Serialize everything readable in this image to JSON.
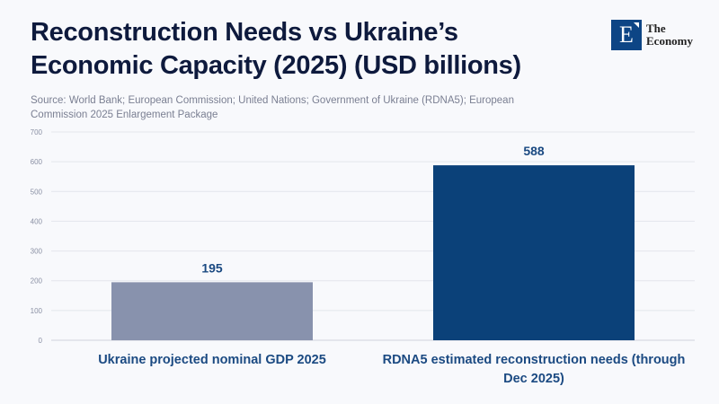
{
  "header": {
    "title": "Reconstruction Needs vs Ukraine’s Economic Capacity (2025) (USD billions)",
    "subtitle": "Source: World Bank; European Commission; United Nations; Government of Ukraine (RDNA5); European Commission 2025 Enlargement Package"
  },
  "logo": {
    "letter": "E",
    "line1": "The",
    "line2": "Economy",
    "color": "#0d4585"
  },
  "chart_data": {
    "type": "bar",
    "title": "Reconstruction Needs vs Ukraine’s Economic Capacity (2025) (USD billions)",
    "categories": [
      "Ukraine projected nominal GDP 2025",
      "RDNA5 estimated reconstruction needs (through Dec 2025)"
    ],
    "values": [
      195,
      588
    ],
    "data_labels": [
      "195",
      "588"
    ],
    "colors": [
      "#8892ad",
      "#0b4179"
    ],
    "xlabel": "",
    "ylabel": "",
    "ylim": [
      0,
      700
    ],
    "yticks": [
      0,
      100,
      200,
      300,
      400,
      500,
      600,
      700
    ],
    "ytick_labels": [
      "0",
      "100",
      "200",
      "300",
      "400",
      "500",
      "600",
      "700"
    ],
    "grid": true,
    "legend": "none"
  }
}
